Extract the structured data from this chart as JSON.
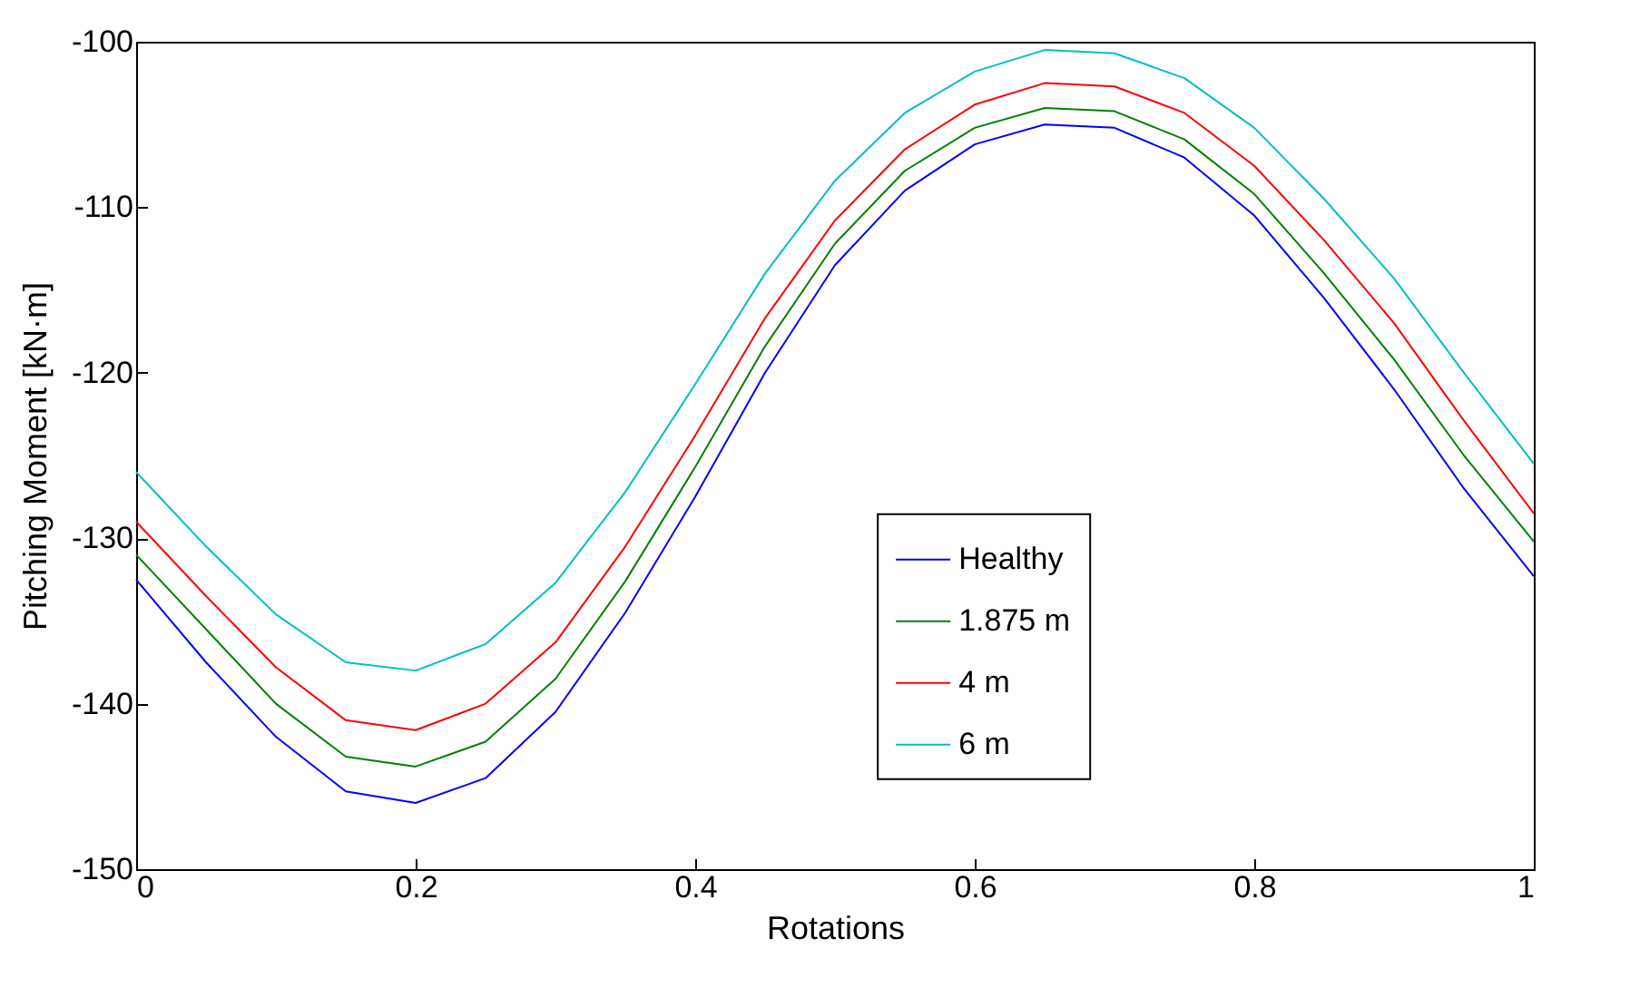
{
  "chart_data": {
    "type": "line",
    "xlabel": "Rotations",
    "ylabel": "Pitching Moment [kN·m]",
    "x": [
      0,
      0.05,
      0.1,
      0.15,
      0.2,
      0.25,
      0.3,
      0.35,
      0.4,
      0.45,
      0.5,
      0.55,
      0.6,
      0.65,
      0.7,
      0.75,
      0.8,
      0.85,
      0.9,
      0.95,
      1
    ],
    "series": [
      {
        "name": "Healthy",
        "color": "#0000ff",
        "values": [
          -132.5,
          -137.5,
          -142,
          -145.3,
          -146,
          -144.5,
          -140.5,
          -134.5,
          -127.5,
          -120,
          -113.5,
          -109,
          -106.2,
          -105,
          -105.2,
          -107,
          -110.5,
          -115.5,
          -121,
          -127,
          -132.3
        ]
      },
      {
        "name": "1.875 m",
        "color": "#008000",
        "values": [
          -131,
          -135.5,
          -140,
          -143.2,
          -143.8,
          -142.3,
          -138.5,
          -132.6,
          -125.7,
          -118.4,
          -112.2,
          -107.8,
          -105.2,
          -104,
          -104.2,
          -105.9,
          -109.2,
          -114,
          -119.2,
          -125,
          -130.2
        ]
      },
      {
        "name": "4 m",
        "color": "#ff0000",
        "values": [
          -129,
          -133.5,
          -137.8,
          -141,
          -141.6,
          -140,
          -136.3,
          -130.5,
          -123.8,
          -116.7,
          -110.8,
          -106.5,
          -103.8,
          -102.5,
          -102.7,
          -104.3,
          -107.5,
          -112,
          -117,
          -122.9,
          -128.5
        ]
      },
      {
        "name": "6 m",
        "color": "#00bfbf",
        "values": [
          -126,
          -130.5,
          -134.6,
          -137.5,
          -138,
          -136.4,
          -132.7,
          -127.2,
          -120.7,
          -114,
          -108.4,
          -104.3,
          -101.8,
          -100.5,
          -100.7,
          -102.2,
          -105.2,
          -109.5,
          -114.3,
          -120,
          -125.5
        ]
      }
    ],
    "xlim": [
      0,
      1
    ],
    "xticks": [
      0,
      0.2,
      0.4,
      0.6,
      0.8,
      1
    ],
    "ylim": [
      -150,
      -100
    ],
    "yticks": [
      -150,
      -140,
      -130,
      -120,
      -110,
      -100
    ],
    "legend": "bottom right"
  }
}
